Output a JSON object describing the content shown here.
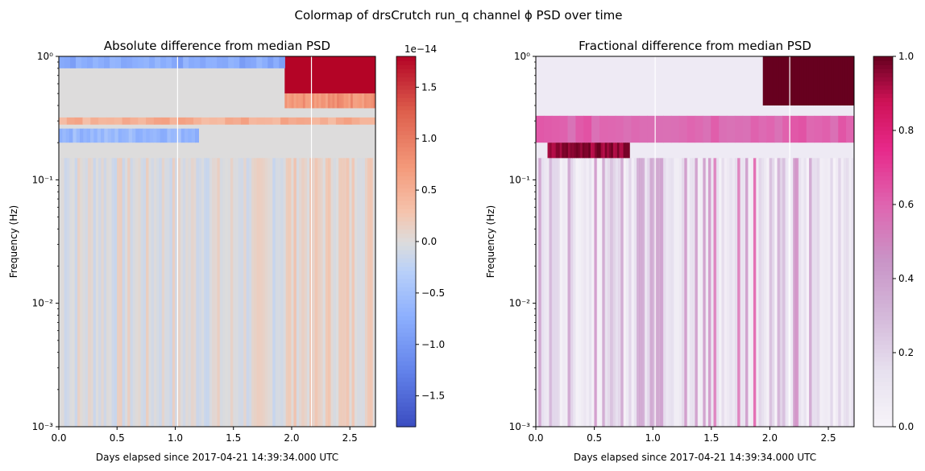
{
  "figure": {
    "title": "Colormap of drsCrutch run_q channel ϕ PSD over time"
  },
  "chart_data": [
    {
      "type": "heatmap",
      "title": "Absolute difference from median PSD",
      "xlabel": "Days elapsed since 2017-04-21 14:39:34.000 UTC",
      "ylabel": "Frequency (Hz)",
      "xlim": [
        0,
        2.72
      ],
      "ylim": [
        0.001,
        1
      ],
      "y_scale": "log",
      "x_ticks": [
        "0.0",
        "0.5",
        "1.0",
        "1.5",
        "2.0",
        "2.5"
      ],
      "y_ticks": [
        "10⁻³",
        "10⁻²",
        "10⁻¹",
        "10⁰"
      ],
      "colormap": "coolwarm",
      "colorbar": {
        "range": [
          -1.8e-14,
          1.8e-14
        ],
        "offset_label": "1e−14",
        "ticks": [
          "−1.5",
          "−1.0",
          "−0.5",
          "0.0",
          "0.5",
          "1.0",
          "1.5"
        ],
        "tick_values": [
          -1.5,
          -1.0,
          -0.5,
          0.0,
          0.5,
          1.0,
          1.5
        ],
        "range_scaled": [
          -1.8,
          1.8
        ]
      },
      "data_gaps_days": [
        1.02,
        2.17
      ],
      "features": [
        {
          "name": "saturated high band",
          "x": [
            1.94,
            2.72
          ],
          "y": [
            0.5,
            1.0
          ],
          "level": 1.8
        },
        {
          "name": "elevated band",
          "x": [
            1.94,
            2.72
          ],
          "y": [
            0.38,
            0.5
          ],
          "level": 0.8
        },
        {
          "name": "negative band",
          "x": [
            0,
            1.94
          ],
          "y": [
            0.8,
            1.0
          ],
          "level": -0.8
        },
        {
          "name": "negative band",
          "x": [
            0,
            1.2
          ],
          "y": [
            0.2,
            0.26
          ],
          "level": -0.6
        },
        {
          "name": "positive band",
          "x": [
            0,
            2.72
          ],
          "y": [
            0.28,
            0.32
          ],
          "level": 0.5
        }
      ]
    },
    {
      "type": "heatmap",
      "title": "Fractional difference from median PSD",
      "xlabel": "Days elapsed since 2017-04-21 14:39:34.000 UTC",
      "ylabel": "Frequency (Hz)",
      "xlim": [
        0,
        2.72
      ],
      "ylim": [
        0.001,
        1
      ],
      "y_scale": "log",
      "x_ticks": [
        "0.0",
        "0.5",
        "1.0",
        "1.5",
        "2.0",
        "2.5"
      ],
      "y_ticks": [
        "10⁻³",
        "10⁻²",
        "10⁻¹",
        "10⁰"
      ],
      "colormap": "PuRd",
      "colorbar": {
        "range": [
          0,
          1
        ],
        "ticks": [
          "0.0",
          "0.2",
          "0.4",
          "0.6",
          "0.8",
          "1.0"
        ],
        "tick_values": [
          0,
          0.2,
          0.4,
          0.6,
          0.8,
          1.0
        ]
      },
      "data_gaps_days": [
        1.02,
        2.17
      ],
      "features": [
        {
          "name": "saturated high band",
          "x": [
            1.94,
            2.72
          ],
          "y": [
            0.4,
            1.0
          ],
          "level": 1.0
        },
        {
          "name": "mid band",
          "x": [
            0,
            2.72
          ],
          "y": [
            0.2,
            0.33
          ],
          "level": 0.6
        },
        {
          "name": "strong patch",
          "x": [
            0.1,
            0.8
          ],
          "y": [
            0.15,
            0.2
          ],
          "level": 0.95
        }
      ]
    }
  ]
}
